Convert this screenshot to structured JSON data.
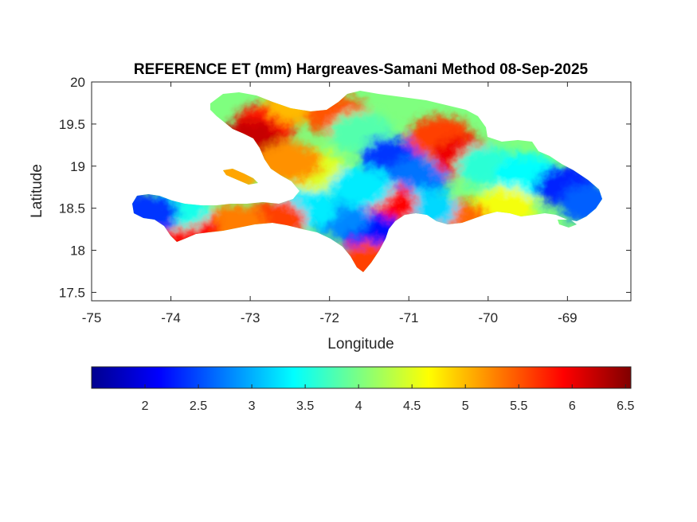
{
  "chart_data": {
    "type": "heatmap",
    "title": "REFERENCE ET (mm) Hargreaves-Samani Method  08-Sep-2025",
    "xlabel": "Longitude",
    "ylabel": "Latitude",
    "xlim": [
      -75,
      -68.2
    ],
    "ylim": [
      17.4,
      20
    ],
    "x_ticks": [
      -75,
      -74,
      -73,
      -72,
      -71,
      -70,
      -69
    ],
    "x_tick_labels": [
      "-75",
      "-74",
      "-73",
      "-72",
      "-71",
      "-70",
      "-69"
    ],
    "y_ticks": [
      17.5,
      18,
      18.5,
      19,
      19.5,
      20
    ],
    "y_tick_labels": [
      "17.5",
      "18",
      "18.5",
      "19",
      "19.5",
      "20"
    ],
    "colormap": "jet",
    "colorbar": {
      "orientation": "horizontal",
      "placement": "below",
      "range": [
        1.5,
        6.55
      ],
      "ticks": [
        2,
        2.5,
        3,
        3.5,
        4,
        4.5,
        5,
        5.5,
        6,
        6.5
      ],
      "tick_labels": [
        "2",
        "2.5",
        "3",
        "3.5",
        "4",
        "4.5",
        "5",
        "5.5",
        "6",
        "6.5"
      ]
    },
    "grid": false,
    "legend": "none",
    "regions": [
      {
        "lon": -72.8,
        "lat": 19.5,
        "value": 5.8
      },
      {
        "lon": -73.0,
        "lat": 19.3,
        "value": 6.2
      },
      {
        "lon": -72.4,
        "lat": 19.75,
        "value": 5.0
      },
      {
        "lon": -71.9,
        "lat": 19.6,
        "value": 5.5
      },
      {
        "lon": -71.6,
        "lat": 19.4,
        "value": 3.8
      },
      {
        "lon": -71.2,
        "lat": 19.1,
        "value": 2.4
      },
      {
        "lon": -70.9,
        "lat": 18.85,
        "value": 2.7
      },
      {
        "lon": -70.6,
        "lat": 19.35,
        "value": 5.6
      },
      {
        "lon": -70.3,
        "lat": 19.1,
        "value": 6.0
      },
      {
        "lon": -70.0,
        "lat": 19.0,
        "value": 3.6
      },
      {
        "lon": -69.5,
        "lat": 18.9,
        "value": 3.4
      },
      {
        "lon": -69.0,
        "lat": 18.75,
        "value": 2.3
      },
      {
        "lon": -68.7,
        "lat": 18.55,
        "value": 2.6
      },
      {
        "lon": -69.8,
        "lat": 18.5,
        "value": 4.6
      },
      {
        "lon": -70.4,
        "lat": 18.35,
        "value": 5.4
      },
      {
        "lon": -70.8,
        "lat": 18.5,
        "value": 3.2
      },
      {
        "lon": -71.3,
        "lat": 18.55,
        "value": 5.9
      },
      {
        "lon": -71.5,
        "lat": 18.2,
        "value": 2.2
      },
      {
        "lon": -71.5,
        "lat": 17.85,
        "value": 5.6
      },
      {
        "lon": -71.9,
        "lat": 18.4,
        "value": 2.8
      },
      {
        "lon": -72.3,
        "lat": 18.5,
        "value": 3.3
      },
      {
        "lon": -72.7,
        "lat": 18.35,
        "value": 5.6
      },
      {
        "lon": -73.2,
        "lat": 18.3,
        "value": 5.3
      },
      {
        "lon": -73.8,
        "lat": 18.25,
        "value": 5.9
      },
      {
        "lon": -73.9,
        "lat": 18.5,
        "value": 3.5
      },
      {
        "lon": -74.3,
        "lat": 18.45,
        "value": 2.4
      },
      {
        "lon": -72.2,
        "lat": 18.95,
        "value": 4.5
      },
      {
        "lon": -72.5,
        "lat": 19.05,
        "value": 5.2
      },
      {
        "lon": -73.3,
        "lat": 18.9,
        "value": 5.1
      },
      {
        "lon": -71.6,
        "lat": 18.75,
        "value": 3.3
      }
    ]
  }
}
